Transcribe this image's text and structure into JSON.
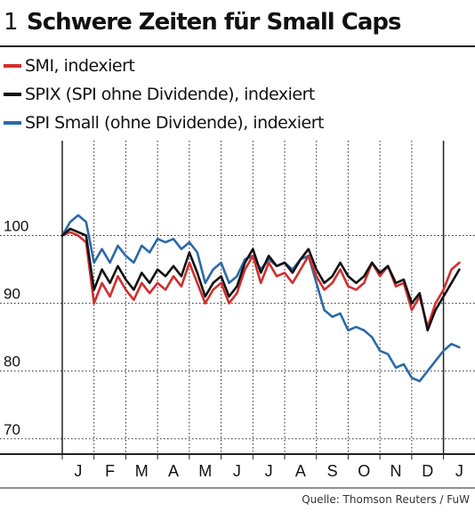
{
  "figure_number": "1",
  "title": "Schwere Zeiten für Small Caps",
  "source": "Quelle: Thomson Reuters / FuW",
  "legend": [
    {
      "label": "SMI, indexiert",
      "color": "#d22e2e"
    },
    {
      "label": "SPIX (SPI ohne Dividende), indexiert",
      "color": "#111111"
    },
    {
      "label": "SPI Small (ohne Dividende), indexiert",
      "color": "#2b6aa8"
    }
  ],
  "chart_data": {
    "type": "line",
    "title": "Schwere Zeiten für Small Caps",
    "xlabel": "",
    "ylabel": "",
    "ylim": [
      68,
      114
    ],
    "xlim": [
      0,
      12.6
    ],
    "yticks": [
      70,
      80,
      90,
      100
    ],
    "xtick_labels": [
      "J",
      "F",
      "M",
      "A",
      "M",
      "J",
      "J",
      "A",
      "S",
      "O",
      "N",
      "D",
      "J"
    ],
    "grid": true,
    "legend_position": "top-left",
    "series": [
      {
        "name": "SMI, indexiert",
        "color": "#d22e2e",
        "x": [
          0,
          0.25,
          0.5,
          0.75,
          1.0,
          1.25,
          1.5,
          1.75,
          2.0,
          2.25,
          2.5,
          2.75,
          3.0,
          3.25,
          3.5,
          3.75,
          4.0,
          4.25,
          4.5,
          4.75,
          5.0,
          5.25,
          5.5,
          5.75,
          6.0,
          6.25,
          6.5,
          6.75,
          7.0,
          7.25,
          7.5,
          7.75,
          8.0,
          8.25,
          8.5,
          8.75,
          9.0,
          9.25,
          9.5,
          9.75,
          10.0,
          10.25,
          10.5,
          10.75,
          11.0,
          11.25,
          11.5,
          11.75,
          12.0,
          12.25,
          12.5
        ],
        "values": [
          100,
          100.5,
          100,
          99,
          90,
          93,
          91,
          94,
          92,
          90.5,
          93,
          91.5,
          93,
          92,
          94,
          92.5,
          96,
          93,
          90,
          92,
          93,
          90,
          91.5,
          95,
          97,
          93,
          96,
          94,
          94.5,
          93,
          95,
          97,
          94,
          92,
          93,
          95,
          92.5,
          92,
          93,
          96,
          94,
          95.5,
          92.5,
          93,
          89,
          91,
          86.5,
          90,
          92,
          95,
          96
        ]
      },
      {
        "name": "SPIX (SPI ohne Dividende), indexiert",
        "color": "#111111",
        "x": [
          0,
          0.25,
          0.5,
          0.75,
          1.0,
          1.25,
          1.5,
          1.75,
          2.0,
          2.25,
          2.5,
          2.75,
          3.0,
          3.25,
          3.5,
          3.75,
          4.0,
          4.25,
          4.5,
          4.75,
          5.0,
          5.25,
          5.5,
          5.75,
          6.0,
          6.25,
          6.5,
          6.75,
          7.0,
          7.25,
          7.5,
          7.75,
          8.0,
          8.25,
          8.5,
          8.75,
          9.0,
          9.25,
          9.5,
          9.75,
          10.0,
          10.25,
          10.5,
          10.75,
          11.0,
          11.25,
          11.5,
          11.75,
          12.0,
          12.25,
          12.5
        ],
        "values": [
          100,
          101,
          100.5,
          100,
          92,
          95,
          93,
          95.5,
          93.5,
          92,
          94.5,
          93,
          95,
          94,
          95.5,
          94,
          97.5,
          94.5,
          91,
          93,
          94,
          91,
          92.5,
          96,
          98,
          94.5,
          97,
          95.5,
          96,
          94.5,
          96.5,
          98,
          95,
          93,
          94,
          96,
          94,
          93,
          94,
          96,
          94.5,
          95.5,
          93,
          93.5,
          90,
          91.5,
          86,
          89,
          91,
          93,
          95
        ]
      },
      {
        "name": "SPI Small (ohne Dividende), indexiert",
        "color": "#2b6aa8",
        "x": [
          0,
          0.25,
          0.5,
          0.75,
          1.0,
          1.25,
          1.5,
          1.75,
          2.0,
          2.25,
          2.5,
          2.75,
          3.0,
          3.25,
          3.5,
          3.75,
          4.0,
          4.25,
          4.5,
          4.75,
          5.0,
          5.25,
          5.5,
          5.75,
          6.0,
          6.25,
          6.5,
          6.75,
          7.0,
          7.25,
          7.5,
          7.75,
          8.0,
          8.25,
          8.5,
          8.75,
          9.0,
          9.25,
          9.5,
          9.75,
          10.0,
          10.25,
          10.5,
          10.75,
          11.0,
          11.25,
          11.5,
          11.75,
          12.0,
          12.25,
          12.5
        ],
        "values": [
          100,
          102,
          103,
          102,
          96,
          98,
          96,
          98.5,
          97,
          96,
          98.5,
          97.5,
          99.5,
          99,
          99.5,
          98,
          99,
          97.5,
          93,
          95,
          96,
          93,
          94,
          96.5,
          97,
          95,
          96.5,
          95.5,
          96,
          95,
          96.5,
          97,
          93,
          89,
          88,
          88.5,
          86,
          86.5,
          86,
          85,
          83,
          82.5,
          80.5,
          81,
          79,
          78.5,
          80,
          81.5,
          83,
          84,
          83.5
        ]
      }
    ]
  }
}
